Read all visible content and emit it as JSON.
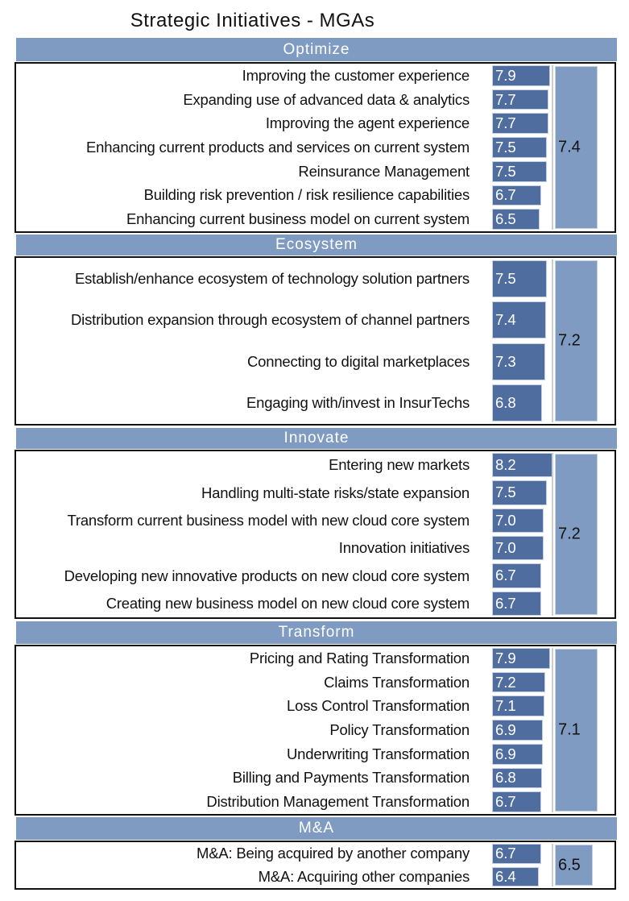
{
  "chart_data": {
    "type": "bar",
    "orientation": "horizontal",
    "title": "Strategic Initiatives - MGAs",
    "colors": {
      "header": "#7f9bc2",
      "bar": "#4f6d9e",
      "group_bar": "#7f9bc2"
    },
    "sections": [
      {
        "name": "Optimize",
        "average": "7.4",
        "items": [
          {
            "label": "Improving the customer experience",
            "value": "7.9"
          },
          {
            "label": "Expanding use of advanced data & analytics",
            "value": "7.7"
          },
          {
            "label": "Improving the agent experience",
            "value": "7.7"
          },
          {
            "label": "Enhancing current products and services on current system",
            "value": "7.5"
          },
          {
            "label": "Reinsurance Management",
            "value": "7.5"
          },
          {
            "label": "Building risk prevention / risk resilience capabilities",
            "value": "6.7"
          },
          {
            "label": "Enhancing current business model on current system",
            "value": "6.5"
          }
        ]
      },
      {
        "name": "Ecosystem",
        "average": "7.2",
        "items": [
          {
            "label": "Establish/enhance ecosystem of technology solution partners",
            "value": "7.5"
          },
          {
            "label": "Distribution expansion through ecosystem of channel partners",
            "value": "7.4"
          },
          {
            "label": "Connecting to digital marketplaces",
            "value": "7.3"
          },
          {
            "label": "Engaging with/invest in InsurTechs",
            "value": "6.8"
          }
        ]
      },
      {
        "name": "Innovate",
        "average": "7.2",
        "items": [
          {
            "label": "Entering new markets",
            "value": "8.2"
          },
          {
            "label": "Handling multi-state risks/state expansion",
            "value": "7.5"
          },
          {
            "label": "Transform current business model with new cloud core system",
            "value": "7.0"
          },
          {
            "label": "Innovation initiatives",
            "value": "7.0"
          },
          {
            "label": "Developing new innovative products on new cloud core system",
            "value": "6.7"
          },
          {
            "label": "Creating new business model on new cloud core system",
            "value": "6.7"
          }
        ]
      },
      {
        "name": "Transform",
        "average": "7.1",
        "items": [
          {
            "label": "Pricing and Rating Transformation",
            "value": "7.9"
          },
          {
            "label": "Claims Transformation",
            "value": "7.2"
          },
          {
            "label": "Loss Control Transformation",
            "value": "7.1"
          },
          {
            "label": "Policy Transformation",
            "value": "6.9"
          },
          {
            "label": "Underwriting Transformation",
            "value": "6.9"
          },
          {
            "label": "Billing and Payments Transformation",
            "value": "6.8"
          },
          {
            "label": "Distribution Management Transformation",
            "value": "6.7"
          }
        ]
      },
      {
        "name": "M&A",
        "average": "6.5",
        "items": [
          {
            "label": "M&A: Being acquired by another company",
            "value": "6.7"
          },
          {
            "label": "M&A: Acquiring other companies",
            "value": "6.4"
          }
        ]
      }
    ]
  }
}
